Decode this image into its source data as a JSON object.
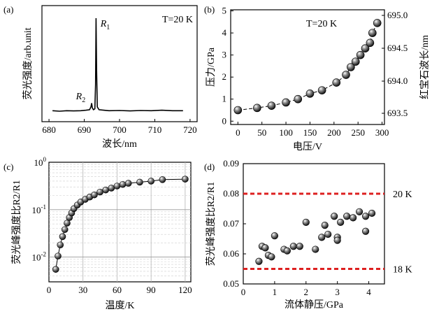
{
  "chart_data": [
    {
      "id": "a",
      "type": "line",
      "panel_label": "(a)",
      "annotation": "T=20 K",
      "xlabel": "波长/nm",
      "ylabel": "荧光强度/arb.unit",
      "xlim": [
        678,
        722
      ],
      "ylim": [
        0,
        1
      ],
      "xticks": [
        680,
        690,
        700,
        710,
        720
      ],
      "peak_labels": [
        {
          "text": "R",
          "sub": "1",
          "x": 693.4
        },
        {
          "text": "R",
          "sub": "2",
          "x": 692.0
        }
      ],
      "series": [
        {
          "name": "spectrum",
          "points": [
            [
              681,
              0.02
            ],
            [
              683,
              0.015
            ],
            [
              685,
              0.02
            ],
            [
              687,
              0.018
            ],
            [
              689,
              0.02
            ],
            [
              690.5,
              0.025
            ],
            [
              691.5,
              0.03
            ],
            [
              691.9,
              0.06
            ],
            [
              692.1,
              0.1
            ],
            [
              692.3,
              0.05
            ],
            [
              692.6,
              0.03
            ],
            [
              693.0,
              0.04
            ],
            [
              693.2,
              0.3
            ],
            [
              693.35,
              1.0
            ],
            [
              693.5,
              0.45
            ],
            [
              693.7,
              0.06
            ],
            [
              694.2,
              0.03
            ],
            [
              695.5,
              0.025
            ],
            [
              697,
              0.02
            ],
            [
              700,
              0.022
            ],
            [
              703,
              0.018
            ],
            [
              706,
              0.022
            ],
            [
              709,
              0.02
            ],
            [
              712,
              0.025
            ],
            [
              715,
              0.02
            ],
            [
              718,
              0.02
            ]
          ]
        }
      ]
    },
    {
      "id": "b",
      "type": "scatter",
      "panel_label": "(b)",
      "annotation": "T=20 K",
      "xlabel": "电压/V",
      "ylabel": "压力/GPa",
      "ylabel_right": "红宝石波长/nm",
      "xlim": [
        -15,
        305
      ],
      "ylim": [
        -0.15,
        5.05
      ],
      "xticks": [
        0,
        50,
        100,
        150,
        200,
        250,
        300
      ],
      "yticks": [
        0,
        1,
        2,
        3,
        4,
        5
      ],
      "right_ticks": [
        "693.5",
        "694.0",
        "694.5",
        "695.0"
      ],
      "series": [
        {
          "name": "pressure",
          "x": [
            0,
            40,
            70,
            100,
            125,
            150,
            175,
            205,
            225,
            235,
            245,
            255,
            265,
            275,
            280,
            290
          ],
          "y": [
            0.5,
            0.6,
            0.7,
            0.85,
            1.0,
            1.25,
            1.4,
            1.75,
            2.1,
            2.45,
            2.7,
            3.0,
            3.3,
            3.55,
            4.0,
            4.45
          ]
        }
      ]
    },
    {
      "id": "c",
      "type": "scatter",
      "panel_label": "(c)",
      "xlabel": "温度/K",
      "ylabel": "荧光峰强度比R2/R1",
      "yscale": "log",
      "xlim": [
        0,
        125
      ],
      "ylim": [
        0.003,
        1
      ],
      "xticks": [
        0,
        30,
        60,
        90,
        120
      ],
      "yticks": [
        "10-2",
        "10-1",
        "100"
      ],
      "series": [
        {
          "name": "intensity ratio",
          "x": [
            6,
            8,
            10,
            12,
            14,
            16,
            18,
            20,
            22,
            25,
            28,
            32,
            36,
            40,
            45,
            50,
            55,
            60,
            65,
            70,
            80,
            90,
            100,
            120
          ],
          "y": [
            0.0055,
            0.0105,
            0.018,
            0.027,
            0.038,
            0.052,
            0.068,
            0.085,
            0.105,
            0.125,
            0.145,
            0.165,
            0.185,
            0.205,
            0.235,
            0.26,
            0.285,
            0.315,
            0.34,
            0.36,
            0.38,
            0.4,
            0.43,
            0.44
          ]
        }
      ]
    },
    {
      "id": "d",
      "type": "scatter",
      "panel_label": "(d)",
      "xlabel": "流体静压/GPa",
      "ylabel": "荧光峰强度比R2/R1",
      "xlim": [
        0,
        4.5
      ],
      "ylim": [
        0.05,
        0.09
      ],
      "xticks": [
        0,
        1,
        2,
        3,
        4
      ],
      "yticks": [
        "0.05",
        "0.06",
        "0.07",
        "0.08",
        "0.09"
      ],
      "reference_lines": [
        {
          "label": "20 K",
          "y": 0.08,
          "color": "#dd2020"
        },
        {
          "label": "18 K",
          "y": 0.055,
          "color": "#dd2020"
        }
      ],
      "series": [
        {
          "name": "intensity ratio",
          "x": [
            0.5,
            0.6,
            0.7,
            0.8,
            0.9,
            1.0,
            1.3,
            1.4,
            1.6,
            1.8,
            2.0,
            2.3,
            2.5,
            2.6,
            2.7,
            2.9,
            3.0,
            3.0,
            3.1,
            3.3,
            3.5,
            3.7,
            3.9,
            3.9,
            4.1
          ],
          "y": [
            0.0575,
            0.0625,
            0.062,
            0.0595,
            0.059,
            0.066,
            0.0615,
            0.061,
            0.0625,
            0.0625,
            0.0705,
            0.0615,
            0.0655,
            0.0695,
            0.0665,
            0.0725,
            0.0655,
            0.0645,
            0.0705,
            0.0725,
            0.072,
            0.074,
            0.0675,
            0.0725,
            0.0735
          ]
        }
      ]
    }
  ]
}
